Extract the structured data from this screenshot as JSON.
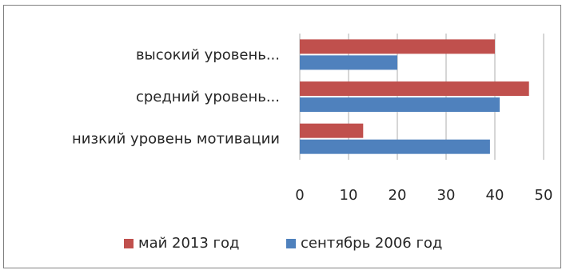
{
  "chart_data": {
    "type": "bar",
    "orientation": "horizontal",
    "categories": [
      "низкий уровень мотивации",
      "средний уровень...",
      "высокий уровень..."
    ],
    "series": [
      {
        "name": "май 2013 год",
        "color": "#c0504d",
        "values": [
          13,
          47,
          40
        ]
      },
      {
        "name": "сентябрь 2006 год",
        "color": "#4f81bd",
        "values": [
          39,
          41,
          20
        ]
      }
    ],
    "xlim": [
      0,
      50
    ],
    "xticks": [
      0,
      10,
      20,
      30,
      40,
      50
    ],
    "grid": true,
    "legend_position": "bottom",
    "title": "",
    "xlabel": "",
    "ylabel": ""
  }
}
